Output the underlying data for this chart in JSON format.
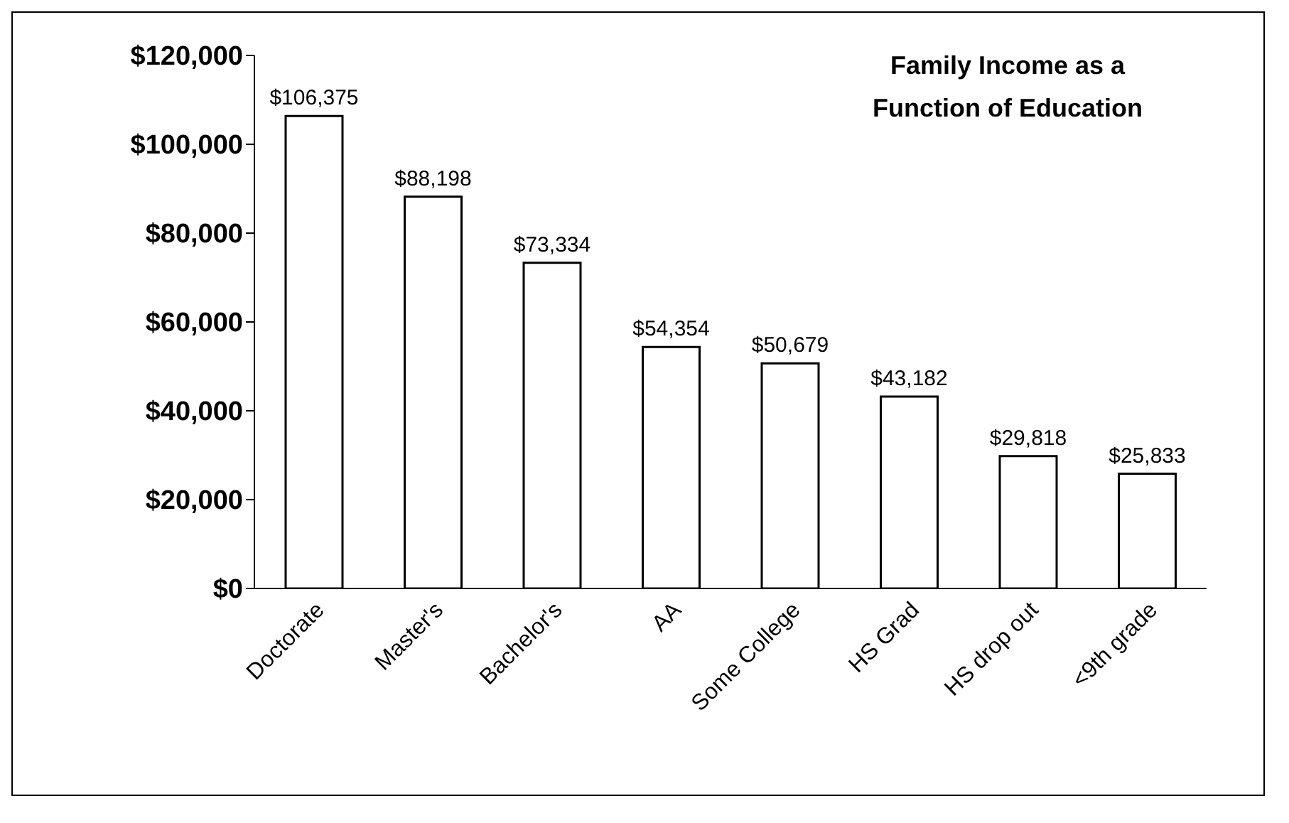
{
  "chart_data": {
    "type": "bar",
    "title": "Family Income as a Function of Education",
    "categories": [
      "Doctorate",
      "Master's",
      "Bachelor's",
      "AA",
      "Some College",
      "HS Grad",
      "HS drop out",
      "<9th grade"
    ],
    "values": [
      106375,
      88198,
      73334,
      54354,
      50679,
      43182,
      29818,
      25833
    ],
    "value_labels": [
      "$106,375",
      "$88,198",
      "$73,334",
      "$54,354",
      "$50,679",
      "$43,182",
      "$29,818",
      "$25,833"
    ],
    "color": "#ffffff",
    "ylim": [
      0,
      120000
    ],
    "yticks": [
      {
        "value": 0,
        "label": "$0"
      },
      {
        "value": 20000,
        "label": "$20,000"
      },
      {
        "value": 40000,
        "label": "$40,000"
      },
      {
        "value": 60000,
        "label": "$60,000"
      },
      {
        "value": 80000,
        "label": "$80,000"
      },
      {
        "value": 100000,
        "label": "$100,000"
      },
      {
        "value": 120000,
        "label": "$120,000"
      }
    ],
    "grid": false,
    "legend": false
  }
}
